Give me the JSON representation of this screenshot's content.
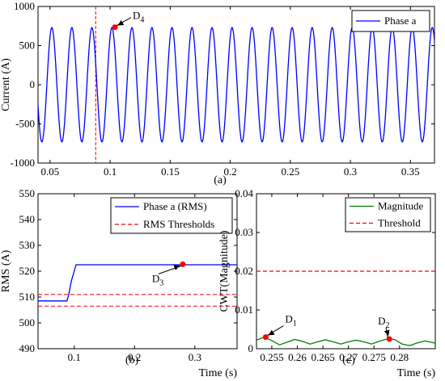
{
  "chart_data": [
    {
      "id": "a",
      "type": "line",
      "panel_label": "(a)",
      "ylabel": "Current (A)",
      "xlabel": "",
      "xlim": [
        0.04,
        0.37
      ],
      "ylim": [
        -1000,
        1000
      ],
      "xticks": [
        0.05,
        0.1,
        0.15,
        0.2,
        0.25,
        0.3,
        0.35
      ],
      "xtick_labels": [
        "0.05",
        "0.1",
        "0.15",
        "0.2",
        "0.25",
        "0.3",
        "0.35"
      ],
      "yticks": [
        -1000,
        -500,
        0,
        500,
        1000
      ],
      "ytick_labels": [
        "-1000",
        "-500",
        "0",
        "500",
        "1000"
      ],
      "legend_position": "top-right",
      "series": [
        {
          "name": "Phase a",
          "color": "#0000ff",
          "waveform": "sinusoid",
          "amplitude": 730,
          "frequency_hz": 60,
          "phase_rad": 1.0
        }
      ],
      "vlines": [
        {
          "x": 0.088,
          "color": "#ff0000",
          "style": "dashed"
        }
      ],
      "markers": [
        {
          "x": 0.104,
          "y": 735,
          "label": "D",
          "subscript": "4",
          "color": "#ff0000"
        }
      ]
    },
    {
      "id": "b",
      "type": "line",
      "panel_label": "(b)",
      "ylabel": "RMS (A)",
      "xlabel": "Time (s)",
      "xlim": [
        0.04,
        0.37
      ],
      "ylim": [
        490,
        550
      ],
      "xticks": [
        0.1,
        0.2,
        0.3
      ],
      "xtick_labels": [
        "0.1",
        "0.2",
        "0.3"
      ],
      "yticks": [
        490,
        500,
        510,
        520,
        530,
        540,
        550
      ],
      "ytick_labels": [
        "490",
        "500",
        "510",
        "520",
        "530",
        "540",
        "550"
      ],
      "legend_position": "top-right",
      "series": [
        {
          "name": "Phase a (RMS)",
          "color": "#0000ff",
          "style": "solid",
          "x": [
            0.04,
            0.088,
            0.091,
            0.095,
            0.1,
            0.103,
            0.37
          ],
          "y": [
            508.5,
            508.5,
            511,
            516,
            520,
            522.5,
            522.5
          ]
        }
      ],
      "threshold_legend": "RMS Thresholds",
      "thresholds": [
        {
          "y": 511,
          "color": "#ff0000"
        },
        {
          "y": 506.5,
          "color": "#ff0000"
        }
      ],
      "markers": [
        {
          "x": 0.28,
          "y": 522.7,
          "label": "D",
          "subscript": "3",
          "color": "#ff0000"
        }
      ]
    },
    {
      "id": "c",
      "type": "line",
      "panel_label": "(c)",
      "ylabel": "CWT(Magnitude)",
      "xlabel": "Time (s)",
      "xlim": [
        0.252,
        0.287
      ],
      "ylim": [
        0,
        0.04
      ],
      "xticks": [
        0.255,
        0.26,
        0.265,
        0.27,
        0.275,
        0.28
      ],
      "xtick_labels": [
        "0.255",
        "0.26",
        "0.265",
        "0.27",
        "0.275",
        "0.28"
      ],
      "yticks": [
        0,
        0.01,
        0.02,
        0.03,
        0.04
      ],
      "ytick_labels": [
        "0",
        "0.01",
        "0.02",
        "0.03",
        "0.04"
      ],
      "legend_position": "top-right",
      "series": [
        {
          "name": "Magnitude",
          "color": "#008000",
          "style": "solid",
          "x": [
            0.252,
            0.2535,
            0.255,
            0.2565,
            0.258,
            0.2595,
            0.261,
            0.2625,
            0.264,
            0.2655,
            0.267,
            0.2685,
            0.27,
            0.2715,
            0.273,
            0.2745,
            0.276,
            0.2775,
            0.279,
            0.2805,
            0.282,
            0.2835,
            0.285,
            0.2865,
            0.287
          ],
          "y": [
            0.0022,
            0.003,
            0.0021,
            0.001,
            0.0017,
            0.0024,
            0.0019,
            0.0012,
            0.0018,
            0.0023,
            0.0018,
            0.0012,
            0.0018,
            0.0022,
            0.0018,
            0.0012,
            0.0019,
            0.0025,
            0.0024,
            0.0012,
            0.0008,
            0.0015,
            0.002,
            0.0016,
            0.0014
          ]
        },
        {
          "name": "Threshold",
          "color": "#ff0000",
          "style": "dashed",
          "x": [
            0.252,
            0.287
          ],
          "y": [
            0.02,
            0.02
          ]
        }
      ],
      "markers": [
        {
          "x": 0.2538,
          "y": 0.003,
          "label": "D",
          "subscript": "1",
          "color": "#ff0000"
        },
        {
          "x": 0.278,
          "y": 0.0025,
          "label": "D",
          "subscript": "2",
          "color": "#ff0000"
        }
      ]
    }
  ]
}
